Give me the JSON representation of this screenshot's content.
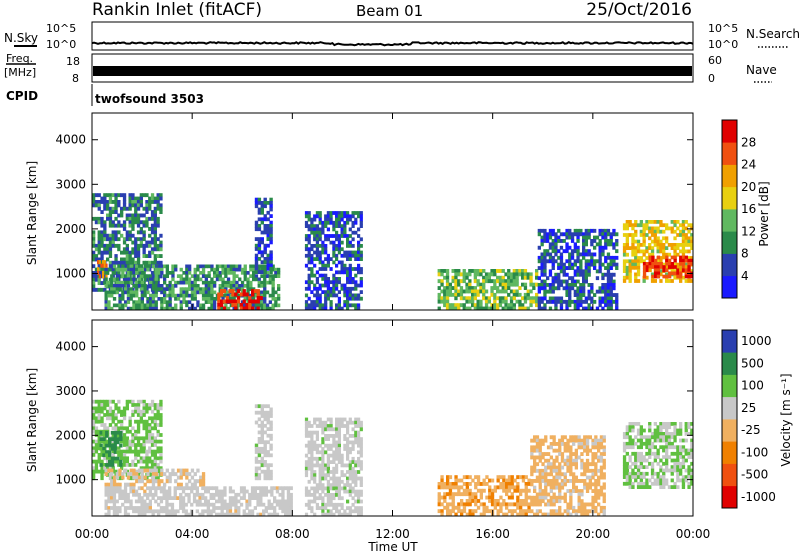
{
  "header": {
    "station": "Rankin Inlet (fitACF)",
    "beam": "Beam 01",
    "date": "25/Oct/2016"
  },
  "sky_panel": {
    "left_label": "N.Sky",
    "right_label": "N.Search",
    "tick_top": "10^5",
    "tick_bottom": "10^0"
  },
  "freq_panel": {
    "left_label_1": "Freq.",
    "left_label_2": "[MHz]",
    "left_tick_top": "18",
    "left_tick_bottom": "8",
    "right_label": "Nave",
    "right_tick_top": "60",
    "right_tick_bottom": "0"
  },
  "cpid_panel": {
    "label": "CPID",
    "value": "twofsound 3503"
  },
  "x_axis": {
    "label": "Time UT",
    "ticks": [
      "00:00",
      "04:00",
      "08:00",
      "12:00",
      "16:00",
      "20:00",
      "00:00"
    ]
  },
  "power_panel": {
    "ylabel": "Slant Range [km]",
    "yticks": [
      "1000",
      "2000",
      "3000",
      "4000"
    ],
    "cbar_label": "Power [dB]",
    "cbar_ticks": [
      "4",
      "8",
      "12",
      "16",
      "20",
      "24",
      "28"
    ]
  },
  "velocity_panel": {
    "ylabel": "Slant Range [km]",
    "yticks": [
      "1000",
      "2000",
      "3000",
      "4000"
    ],
    "cbar_label": "Velocity [m s⁻¹]",
    "cbar_ticks": [
      "1000",
      "500",
      "100",
      "25",
      "-25",
      "-100",
      "-500",
      "-1000"
    ]
  },
  "chart_data": [
    {
      "type": "heatmap",
      "title": "Power",
      "xlabel": "Time UT",
      "ylabel": "Slant Range [km]",
      "x_range_hours": [
        0,
        24
      ],
      "ylim": [
        180,
        4600
      ],
      "colorbar": {
        "label": "Power [dB]",
        "range": [
          0,
          30
        ],
        "colors": [
          "#1a1aff",
          "#2a3fb0",
          "#2a8a4a",
          "#60b860",
          "#e8d010",
          "#f0a000",
          "#f05010",
          "#e00000"
        ]
      },
      "echo_regions": [
        {
          "t": [
            0.0,
            2.8
          ],
          "range_km": [
            600,
            2800
          ],
          "db": 8
        },
        {
          "t": [
            0.2,
            0.6
          ],
          "range_km": [
            900,
            1300
          ],
          "db": 22
        },
        {
          "t": [
            0.5,
            7.5
          ],
          "range_km": [
            180,
            1200
          ],
          "db": 10
        },
        {
          "t": [
            5.0,
            6.8
          ],
          "range_km": [
            180,
            650
          ],
          "db": 28
        },
        {
          "t": [
            6.5,
            7.2
          ],
          "range_km": [
            1000,
            2700
          ],
          "db": 6
        },
        {
          "t": [
            8.5,
            10.8
          ],
          "range_km": [
            180,
            2400
          ],
          "db": 6
        },
        {
          "t": [
            13.8,
            17.8
          ],
          "range_km": [
            180,
            1100
          ],
          "db": 13
        },
        {
          "t": [
            17.8,
            21.0
          ],
          "range_km": [
            180,
            2000
          ],
          "db": 6
        },
        {
          "t": [
            21.2,
            24.0
          ],
          "range_km": [
            800,
            2200
          ],
          "db": 18
        },
        {
          "t": [
            22.0,
            24.0
          ],
          "range_km": [
            900,
            1400
          ],
          "db": 26
        }
      ]
    },
    {
      "type": "heatmap",
      "title": "Velocity",
      "xlabel": "Time UT",
      "ylabel": "Slant Range [km]",
      "x_range_hours": [
        0,
        24
      ],
      "ylim": [
        180,
        4600
      ],
      "colorbar": {
        "label": "Velocity [m s⁻¹]",
        "range": [
          -1000,
          1000
        ],
        "colors": [
          "#e00000",
          "#f05010",
          "#f08000",
          "#f0b060",
          "#c8c8c8",
          "#60c040",
          "#2a8a4a",
          "#2a3fb0"
        ]
      },
      "echo_regions": [
        {
          "t": [
            0.0,
            2.8
          ],
          "range_km": [
            1000,
            2800
          ],
          "vel": 300
        },
        {
          "t": [
            0.3,
            1.2
          ],
          "range_km": [
            1300,
            2100
          ],
          "vel": 600
        },
        {
          "t": [
            0.5,
            4.5
          ],
          "range_km": [
            850,
            1250
          ],
          "vel": 0
        },
        {
          "t": [
            0.5,
            8.0
          ],
          "range_km": [
            180,
            850
          ],
          "vel": 120
        },
        {
          "t": [
            6.5,
            7.2
          ],
          "range_km": [
            1000,
            2700
          ],
          "vel": 150
        },
        {
          "t": [
            8.5,
            10.8
          ],
          "range_km": [
            180,
            2400
          ],
          "vel": 150
        },
        {
          "t": [
            13.8,
            17.5
          ],
          "range_km": [
            180,
            1100
          ],
          "vel": -200
        },
        {
          "t": [
            17.5,
            20.5
          ],
          "range_km": [
            180,
            2000
          ],
          "vel": -80
        },
        {
          "t": [
            21.2,
            24.0
          ],
          "range_km": [
            800,
            2300
          ],
          "vel": 250
        }
      ]
    }
  ]
}
